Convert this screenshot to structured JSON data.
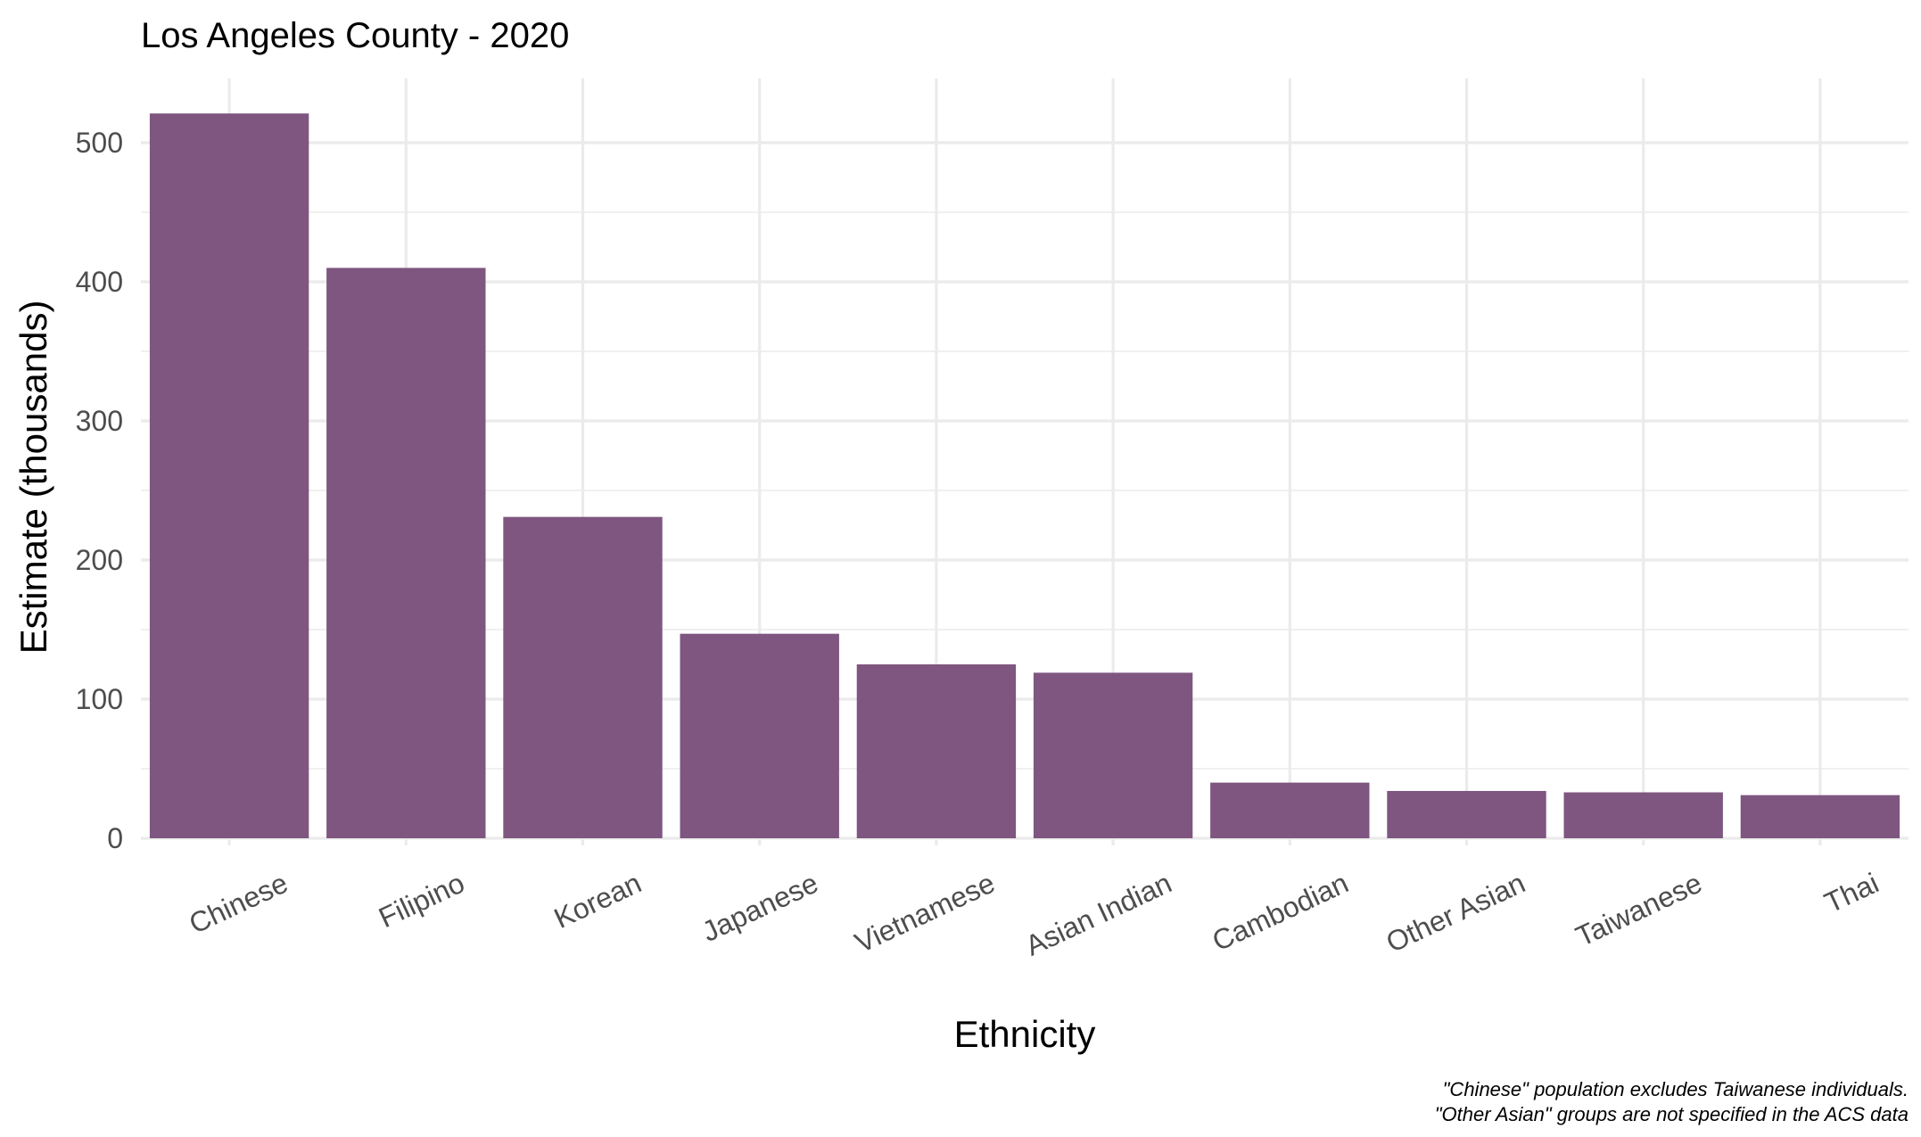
{
  "chart_data": {
    "type": "bar",
    "title": "Los Angeles County - 2020",
    "xlabel": "Ethnicity",
    "ylabel": "Estimate (thousands)",
    "categories": [
      "Chinese",
      "Filipino",
      "Korean",
      "Japanese",
      "Vietnamese",
      "Asian Indian",
      "Cambodian",
      "Other Asian",
      "Taiwanese",
      "Thai"
    ],
    "values": [
      521,
      410,
      231,
      147,
      125,
      119,
      40,
      34,
      33,
      31
    ],
    "ylim": [
      0,
      546
    ],
    "yticks": [
      0,
      100,
      200,
      300,
      400,
      500
    ],
    "ytick_labels": [
      "0",
      "100",
      "200",
      "300",
      "400",
      "500"
    ],
    "grid": true,
    "legend": "none",
    "bar_color": "#7e5680",
    "caption_lines": [
      "\"Chinese\" population excludes Taiwanese individuals.",
      "\"Other Asian\" groups are not specified in the ACS data"
    ]
  }
}
